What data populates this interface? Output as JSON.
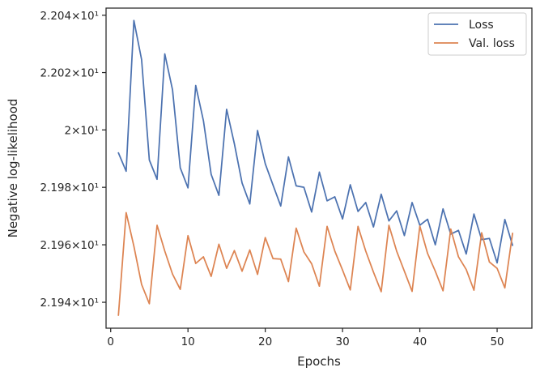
{
  "chart_data": {
    "type": "line",
    "xlabel": "Epochs",
    "ylabel": "Negative log-likelihood",
    "xlim": [
      -0.6,
      54.5
    ],
    "ylim": [
      21.931,
      22.0425
    ],
    "y_scale": "log",
    "grid": false,
    "legend_position": "top-right",
    "x_ticks": [
      {
        "value": 0,
        "label": "0"
      },
      {
        "value": 10,
        "label": "10"
      },
      {
        "value": 20,
        "label": "20"
      },
      {
        "value": 30,
        "label": "30"
      },
      {
        "value": 40,
        "label": "40"
      },
      {
        "value": 50,
        "label": "50"
      }
    ],
    "y_ticks": [
      {
        "value": 21.94,
        "label": "2.194×10¹"
      },
      {
        "value": 21.96,
        "label": "2.196×10¹"
      },
      {
        "value": 21.98,
        "label": "2.198×10¹"
      },
      {
        "value": 22.0,
        "label": "2×10¹"
      },
      {
        "value": 22.02,
        "label": "2.202×10¹"
      },
      {
        "value": 22.04,
        "label": "2.204×10¹"
      }
    ],
    "x": [
      1,
      2,
      3,
      4,
      5,
      6,
      7,
      8,
      9,
      10,
      11,
      12,
      13,
      14,
      15,
      16,
      17,
      18,
      19,
      20,
      21,
      22,
      23,
      24,
      25,
      26,
      27,
      28,
      29,
      30,
      31,
      32,
      33,
      34,
      35,
      36,
      37,
      38,
      39,
      40,
      41,
      42,
      43,
      44,
      45,
      46,
      47,
      48,
      49,
      50,
      51,
      52
    ],
    "series": [
      {
        "name": "Loss",
        "color": "#4c72b0",
        "values": [
          21.992,
          21.9856,
          22.0382,
          22.0245,
          21.9895,
          21.9828,
          22.0265,
          22.014,
          21.9868,
          21.9798,
          22.0155,
          22.0032,
          21.9845,
          21.9772,
          22.0072,
          21.9952,
          21.9815,
          21.9742,
          21.9998,
          21.9882,
          21.9808,
          21.9735,
          21.9906,
          21.9805,
          21.98,
          21.9714,
          21.9853,
          21.9753,
          21.9767,
          21.969,
          21.9809,
          21.9716,
          21.9747,
          21.9662,
          21.9776,
          21.9683,
          21.9718,
          21.9632,
          21.9747,
          21.9668,
          21.9689,
          21.96,
          21.9725,
          21.9637,
          21.965,
          21.9568,
          21.9707,
          21.9618,
          21.9622,
          21.9537,
          21.9688,
          21.9598
        ]
      },
      {
        "name": "Val. loss",
        "color": "#dd8452",
        "values": [
          21.9355,
          21.9712,
          21.9595,
          21.9462,
          21.9395,
          21.9668,
          21.9578,
          21.9498,
          21.9445,
          21.9632,
          21.9535,
          21.9558,
          21.949,
          21.9602,
          21.9518,
          21.958,
          21.9508,
          21.9582,
          21.9497,
          21.9625,
          21.9552,
          21.955,
          21.9472,
          21.9658,
          21.9575,
          21.9534,
          21.9456,
          21.9664,
          21.9578,
          21.9512,
          21.9443,
          21.9664,
          21.9578,
          21.9505,
          21.9437,
          21.9668,
          21.9578,
          21.9508,
          21.9438,
          21.9665,
          21.957,
          21.9508,
          21.944,
          21.9655,
          21.9558,
          21.9514,
          21.9442,
          21.9642,
          21.954,
          21.9518,
          21.945,
          21.964
        ]
      }
    ]
  }
}
